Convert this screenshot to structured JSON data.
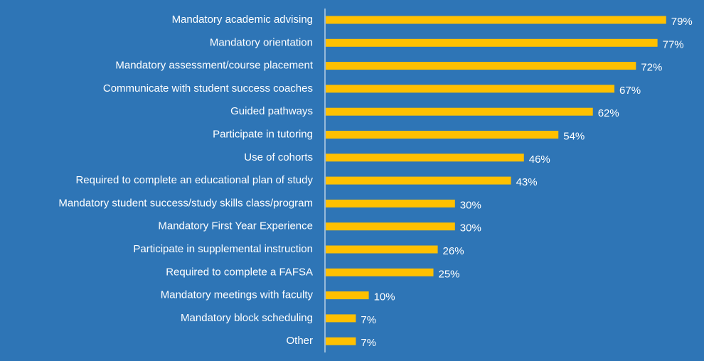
{
  "chart_data": {
    "type": "bar",
    "orientation": "horizontal",
    "categories": [
      "Mandatory academic advising",
      "Mandatory orientation",
      "Mandatory assessment/course placement",
      "Communicate with student success coaches",
      "Guided pathways",
      "Participate in tutoring",
      "Use of cohorts",
      "Required to complete an educational plan of study",
      "Mandatory student success/study skills class/program",
      "Mandatory First Year Experience",
      "Participate in supplemental instruction",
      "Required to complete a FAFSA",
      "Mandatory meetings with faculty",
      "Mandatory block scheduling",
      "Other"
    ],
    "values": [
      79,
      77,
      72,
      67,
      62,
      54,
      46,
      43,
      30,
      30,
      26,
      25,
      10,
      7,
      7
    ],
    "value_labels": [
      "79%",
      "77%",
      "72%",
      "67%",
      "62%",
      "54%",
      "46%",
      "43%",
      "30%",
      "30%",
      "26%",
      "25%",
      "10%",
      "7%",
      "7%"
    ],
    "unit": "%",
    "xlim": [
      0,
      100
    ],
    "grid": false,
    "legend": "none",
    "colors": {
      "background": "#2E75B6",
      "bar": "#FFC000",
      "text": "#FFFFFF",
      "axis": "#FFFFFF"
    }
  }
}
